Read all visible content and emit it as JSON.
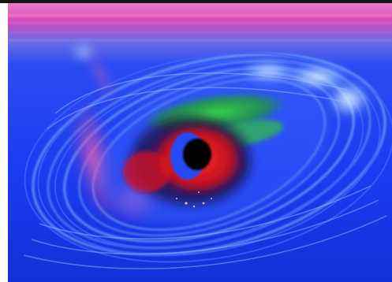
{
  "image": {
    "subject": "swirling-vortex-eye",
    "palette": {
      "top_band_pink": "#f07ac8",
      "top_band_magenta": "#d64ab8",
      "background_blue": "#1a3cf0",
      "deep_blue": "#0b1bb8",
      "swirl_light_blue": "#6fa8ff",
      "glow_cyan": "#c8f4ff",
      "green_arc": "#2fc43a",
      "red_ring": "#e0141c",
      "inner_blue": "#1b4dff",
      "core_black": "#000000",
      "magenta_trail": "#e04aa6",
      "border_dark": "#141414"
    }
  }
}
